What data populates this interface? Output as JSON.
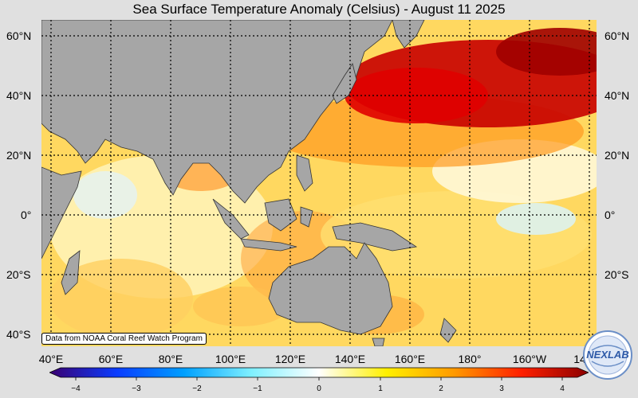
{
  "title": "Sea Surface Temperature Anomaly (Celsius) - August 11 2025",
  "credit": "Data from NOAA Coral Reef Watch Program",
  "logo_text": "NEXLAB",
  "lat_labels": [
    "60°N",
    "40°N",
    "20°N",
    "0°",
    "20°S",
    "40°S"
  ],
  "lon_labels": [
    "40°E",
    "60°E",
    "80°E",
    "100°E",
    "120°E",
    "140°E",
    "160°E",
    "180°",
    "160°W",
    "14"
  ],
  "colorbar": {
    "min": -4,
    "max": 4,
    "ticks": [
      "−4",
      "−3",
      "−2",
      "−1",
      "0",
      "1",
      "2",
      "3",
      "4"
    ],
    "colors": [
      "#3a0070",
      "#0a3cff",
      "#00a0ff",
      "#7ff0ff",
      "#ffffff",
      "#fff000",
      "#ff9a00",
      "#ff2000",
      "#8b0000"
    ]
  },
  "colors": {
    "land": "#a6a6a6",
    "ocean_base": "#ffe47a",
    "warm": "#ff8c00",
    "hot": "#c80000",
    "cool": "#cfe9ff",
    "grid": "#000000"
  }
}
